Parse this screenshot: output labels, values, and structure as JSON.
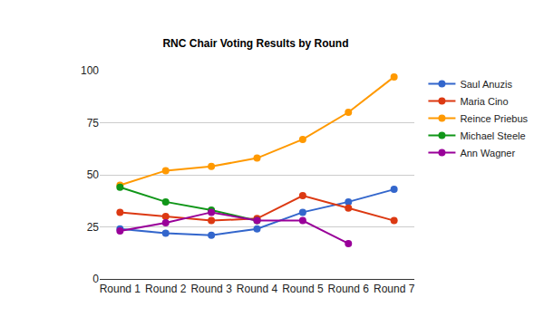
{
  "chart_data": {
    "type": "line",
    "title": "RNC Chair Voting Results by Round",
    "categories": [
      "Round 1",
      "Round 2",
      "Round 3",
      "Round 4",
      "Round 5",
      "Round 6",
      "Round 7"
    ],
    "series": [
      {
        "name": "Saul Anuzis",
        "color": "#3366cc",
        "values": [
          24,
          22,
          21,
          24,
          32,
          37,
          43
        ]
      },
      {
        "name": "Maria Cino",
        "color": "#dc3912",
        "values": [
          32,
          30,
          28,
          29,
          40,
          34,
          28
        ]
      },
      {
        "name": "Reince Priebus",
        "color": "#ff9900",
        "values": [
          45,
          52,
          54,
          58,
          67,
          80,
          97
        ]
      },
      {
        "name": "Michael Steele",
        "color": "#109618",
        "values": [
          44,
          37,
          33,
          28,
          null,
          null,
          null
        ]
      },
      {
        "name": "Ann Wagner",
        "color": "#990099",
        "values": [
          23,
          27,
          32,
          28,
          28,
          17,
          null
        ]
      }
    ],
    "ylim": [
      0,
      100
    ],
    "yticks": [
      0,
      25,
      50,
      75,
      100
    ],
    "grid": true,
    "legend": "right",
    "marker": "circle",
    "line_style": "solid"
  }
}
